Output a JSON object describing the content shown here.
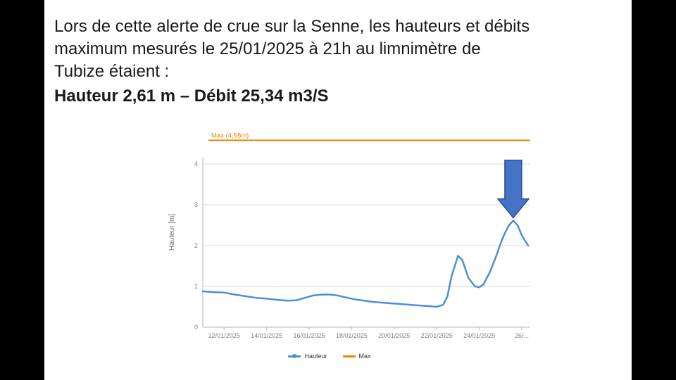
{
  "slide": {
    "paragraph_lines": [
      "Lors de cette alerte de crue sur la Senne, les hauteurs et débits",
      "maximum mesurés le 25/01/2025 à 21h au limnimètre de",
      "Tubize étaient :"
    ],
    "highlight": "Hauteur 2,61 m – Débit 25,34 m3/S"
  },
  "chart_data": {
    "type": "line",
    "title": "",
    "xlabel": "",
    "ylabel": "Hauteur [m]",
    "ylim": [
      0,
      4.8
    ],
    "grid": true,
    "legend_position": "bottom",
    "yticks": [
      0,
      1,
      2,
      3,
      4
    ],
    "x_ticks": [
      {
        "day": 12,
        "label": "12/01/2025"
      },
      {
        "day": 14,
        "label": "14/01/2025"
      },
      {
        "day": 16,
        "label": "16/01/2025"
      },
      {
        "day": 18,
        "label": "18/01/2025"
      },
      {
        "day": 20,
        "label": "20/01/2025"
      },
      {
        "day": 22,
        "label": "22/01/2025"
      },
      {
        "day": 24,
        "label": "24/01/2025"
      },
      {
        "day": 26,
        "label": "26/..."
      }
    ],
    "max_line": {
      "label": "Max (4,58m)",
      "value": 4.58
    },
    "series": [
      {
        "name": "Hauteur",
        "color": "#4a90d2",
        "x": [
          11.0,
          11.5,
          12.0,
          12.5,
          13.0,
          13.5,
          14.0,
          14.5,
          15.0,
          15.4,
          15.8,
          16.2,
          16.6,
          17.0,
          17.4,
          17.8,
          18.2,
          18.6,
          19.0,
          19.5,
          20.0,
          20.5,
          21.0,
          21.5,
          22.0,
          22.3,
          22.5,
          22.7,
          23.0,
          23.2,
          23.5,
          23.8,
          24.0,
          24.2,
          24.5,
          24.8,
          25.0,
          25.2,
          25.4,
          25.6,
          25.8,
          26.0,
          26.3
        ],
        "values": [
          0.88,
          0.86,
          0.85,
          0.8,
          0.76,
          0.72,
          0.7,
          0.67,
          0.65,
          0.66,
          0.72,
          0.78,
          0.8,
          0.8,
          0.77,
          0.72,
          0.68,
          0.65,
          0.62,
          0.6,
          0.58,
          0.56,
          0.54,
          0.52,
          0.5,
          0.55,
          0.75,
          1.25,
          1.75,
          1.65,
          1.2,
          1.0,
          0.98,
          1.05,
          1.35,
          1.75,
          2.05,
          2.3,
          2.5,
          2.61,
          2.5,
          2.25,
          2.0
        ]
      }
    ],
    "legend": [
      {
        "label": "Hauteur",
        "color": "#4a90d2",
        "marker": true
      },
      {
        "label": "Max",
        "color": "#e8820d",
        "marker": false
      }
    ],
    "annotations": [
      {
        "type": "arrow-down",
        "at_day": 25.6,
        "points_to_value": 2.61
      }
    ],
    "colors": {
      "hauteur": "#4a90d2",
      "max": "#e8820d",
      "grid": "#d9d9d9",
      "axis": "#b5b5b5",
      "tick_text": "#808080",
      "arrow_fill": "#4472c4",
      "arrow_stroke": "#2e5395"
    }
  }
}
